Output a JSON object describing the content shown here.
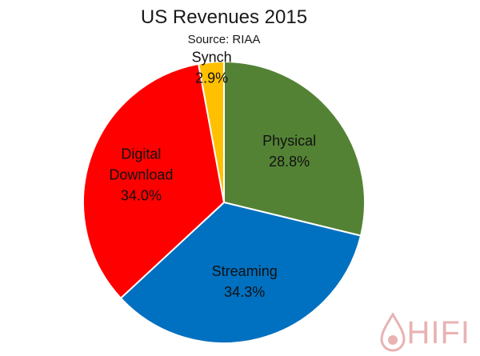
{
  "chart_data": {
    "type": "pie",
    "title": "US Revenues 2015",
    "subtitle": "Source: RIAA",
    "slices": [
      {
        "label_lines": [
          "Physical"
        ],
        "value": 28.8,
        "value_label": "28.8%",
        "color": "#548235"
      },
      {
        "label_lines": [
          "Streaming"
        ],
        "value": 34.3,
        "value_label": "34.3%",
        "color": "#0070C0"
      },
      {
        "label_lines": [
          "Digital",
          "Download"
        ],
        "value": 34.0,
        "value_label": "34.0%",
        "color": "#FF0000"
      },
      {
        "label_lines": [
          "Synch"
        ],
        "value": 2.9,
        "value_label": "2.9%",
        "color": "#FFC000"
      }
    ],
    "start_direction": "top",
    "direction": "clockwise",
    "legend": "none"
  },
  "watermark": {
    "text": "HIFI",
    "color": "#e8b3b3",
    "icon": "drop-logo-icon"
  }
}
